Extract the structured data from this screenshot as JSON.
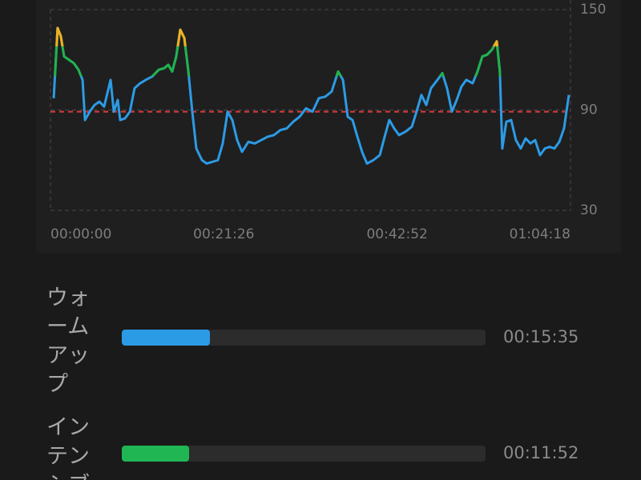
{
  "chart_data": {
    "type": "line",
    "x": [
      24,
      53,
      77,
      101,
      137,
      173,
      208,
      238,
      256,
      291,
      327,
      363,
      398,
      446,
      470,
      499,
      517,
      553,
      589,
      624,
      666,
      707,
      755,
      802,
      844,
      874,
      903,
      933,
      963,
      993,
      1023,
      1052,
      1082,
      1124,
      1159,
      1201,
      1242,
      1278,
      1314,
      1349,
      1385,
      1421,
      1468,
      1516,
      1563,
      1611,
      1658,
      1706,
      1753,
      1801,
      1849,
      1896,
      1944,
      1991,
      2039,
      2086,
      2134,
      2170,
      2205,
      2241,
      2277,
      2312,
      2348,
      2395,
      2443,
      2479,
      2514,
      2550,
      2586,
      2633,
      2681,
      2716,
      2752,
      2788,
      2823,
      2871,
      2907,
      2942,
      2978,
      3014,
      3049,
      3085,
      3132,
      3168,
      3204,
      3239,
      3275,
      3311,
      3334,
      3352,
      3382,
      3418,
      3453,
      3489,
      3525,
      3561,
      3596,
      3632,
      3668,
      3703,
      3739,
      3775,
      3810,
      3846
    ],
    "series": [
      {
        "color": "#2c9be6",
        "values": [
          97,
          139,
          134,
          122,
          120,
          118,
          114,
          108,
          84,
          89,
          93,
          95,
          92,
          108,
          89,
          96,
          84,
          85,
          89,
          103,
          106,
          108,
          110,
          114,
          115,
          117,
          113,
          122,
          138,
          133,
          113,
          89,
          67,
          60,
          58,
          59,
          60,
          70,
          89,
          84,
          72,
          65,
          71,
          70,
          72,
          74,
          75,
          78,
          79,
          83,
          86,
          91,
          89,
          97,
          98,
          101,
          113,
          108,
          86,
          84,
          74,
          65,
          58,
          60,
          63,
          74,
          84,
          79,
          75,
          77,
          80,
          89,
          99,
          93,
          103,
          108,
          112,
          103,
          89,
          96,
          104,
          108,
          106,
          113,
          122,
          123,
          126,
          131,
          113,
          67,
          83,
          84,
          72,
          67,
          73,
          70,
          72,
          63,
          67,
          68,
          67,
          71,
          79,
          99
        ]
      }
    ],
    "color_bands": [
      {
        "from": 110,
        "color": "#22b24c"
      },
      {
        "from": 128,
        "color": "#f0b020"
      }
    ],
    "reference_line": {
      "value": 89,
      "color": "#e03a3a"
    },
    "xlim": [
      0,
      3858
    ],
    "xticks": [
      {
        "value": 0,
        "label": "00:00:00"
      },
      {
        "value": 1286,
        "label": "00:21:26"
      },
      {
        "value": 2572,
        "label": "00:42:52"
      },
      {
        "value": 3858,
        "label": "01:04:18"
      }
    ],
    "ylim": [
      30,
      150
    ],
    "yticks": [
      30,
      90,
      150
    ]
  },
  "zones": [
    {
      "name": "ウォームアップ",
      "color": "#2c9be6",
      "duration": {
        "value": 935,
        "label": "00:15:35"
      }
    },
    {
      "name": "インテンシブ",
      "color": "#1fb653",
      "duration": {
        "value": 712,
        "label": "00:11:52"
      }
    }
  ]
}
